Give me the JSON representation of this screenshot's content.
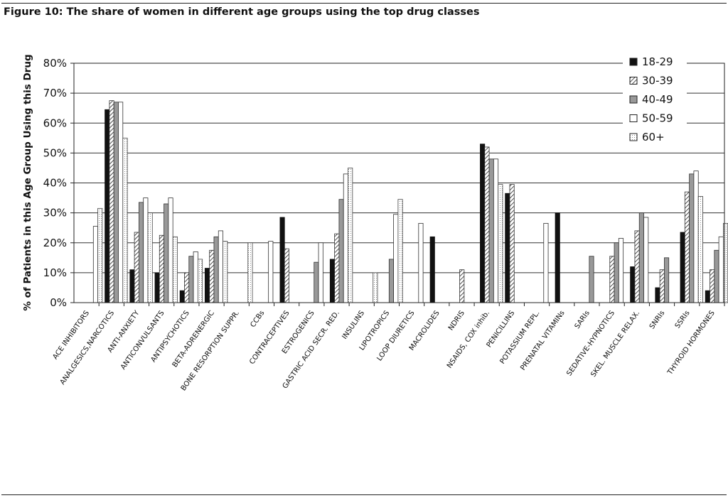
{
  "figure": {
    "title": "Figure 10: The share of women in different age groups using the top drug classes"
  },
  "chart_data": {
    "type": "bar",
    "title": "Figure 10: The share of women in different age groups using the top drug classes",
    "xlabel": "",
    "ylabel": "% of Patients in this Age Group Using this Drug",
    "ylim": [
      0,
      80
    ],
    "yticks": [
      "0%",
      "10%",
      "20%",
      "30%",
      "40%",
      "50%",
      "60%",
      "70%",
      "80%"
    ],
    "grid": true,
    "legend_position": "top-right",
    "categories": [
      "ACE INHIBITORS",
      "ANALGESICS,NARCOTICS",
      "ANTI-ANXIETY",
      "ANTICONVULSANTS",
      "ANTIPSYCHOTICS",
      "BETA-ADRENERGIC",
      "BONE RESORPTION SUPPR.",
      "CCBs",
      "CONTRACEPTIVES",
      "ESTROGENICS",
      "GASTRIC ACID SECR. RED.",
      "INSULINS",
      "LIPOTROPICS",
      "LOOP DIURETICS",
      "MACROLIDES",
      "NDRIS",
      "NSAIDS, COX inhib.",
      "PENICILLINS",
      "POTASSIUM REPL.",
      "PRENATAL VITAMINs",
      "SARIs",
      "SEDATIVE-HYPNOTICS",
      "SKEL. MUSCLE RELAX.",
      "SNRIs",
      "SSRIs",
      "THYROID HORMONES"
    ],
    "series": [
      {
        "name": "18-29",
        "values": [
          0,
          64.5,
          11,
          10,
          4,
          11.5,
          0,
          0,
          28.5,
          0,
          14.5,
          0,
          0,
          0,
          22,
          0,
          53,
          36.5,
          0,
          30,
          0,
          0,
          12,
          5,
          23.5,
          4
        ]
      },
      {
        "name": "30-39",
        "values": [
          0,
          67.5,
          23.5,
          22.5,
          10,
          17.5,
          0,
          0,
          18,
          0,
          23,
          0,
          0,
          0,
          0,
          11,
          52,
          39.5,
          0,
          0,
          0,
          15.5,
          24,
          11,
          37,
          11
        ]
      },
      {
        "name": "40-49",
        "values": [
          0,
          67,
          33.5,
          33,
          15.5,
          22,
          0,
          0,
          0,
          13.5,
          34.5,
          0,
          14.5,
          0,
          0,
          0,
          48,
          0,
          0,
          0,
          15.5,
          20,
          30,
          15,
          43,
          17.5
        ]
      },
      {
        "name": "50-59",
        "values": [
          25.5,
          67,
          35,
          35,
          17,
          24,
          0,
          20.5,
          0,
          20,
          43,
          0,
          29.5,
          26.5,
          0,
          0,
          48,
          0,
          26.5,
          0,
          0,
          21.5,
          28.5,
          0,
          44,
          22
        ]
      },
      {
        "name": "60+",
        "values": [
          31.5,
          55,
          30,
          22,
          14.5,
          20.5,
          20,
          0,
          0,
          0,
          45,
          10,
          34.5,
          0,
          0,
          0,
          39.5,
          0,
          0,
          0,
          0,
          0,
          0,
          0,
          35.5,
          26.5
        ]
      }
    ]
  }
}
